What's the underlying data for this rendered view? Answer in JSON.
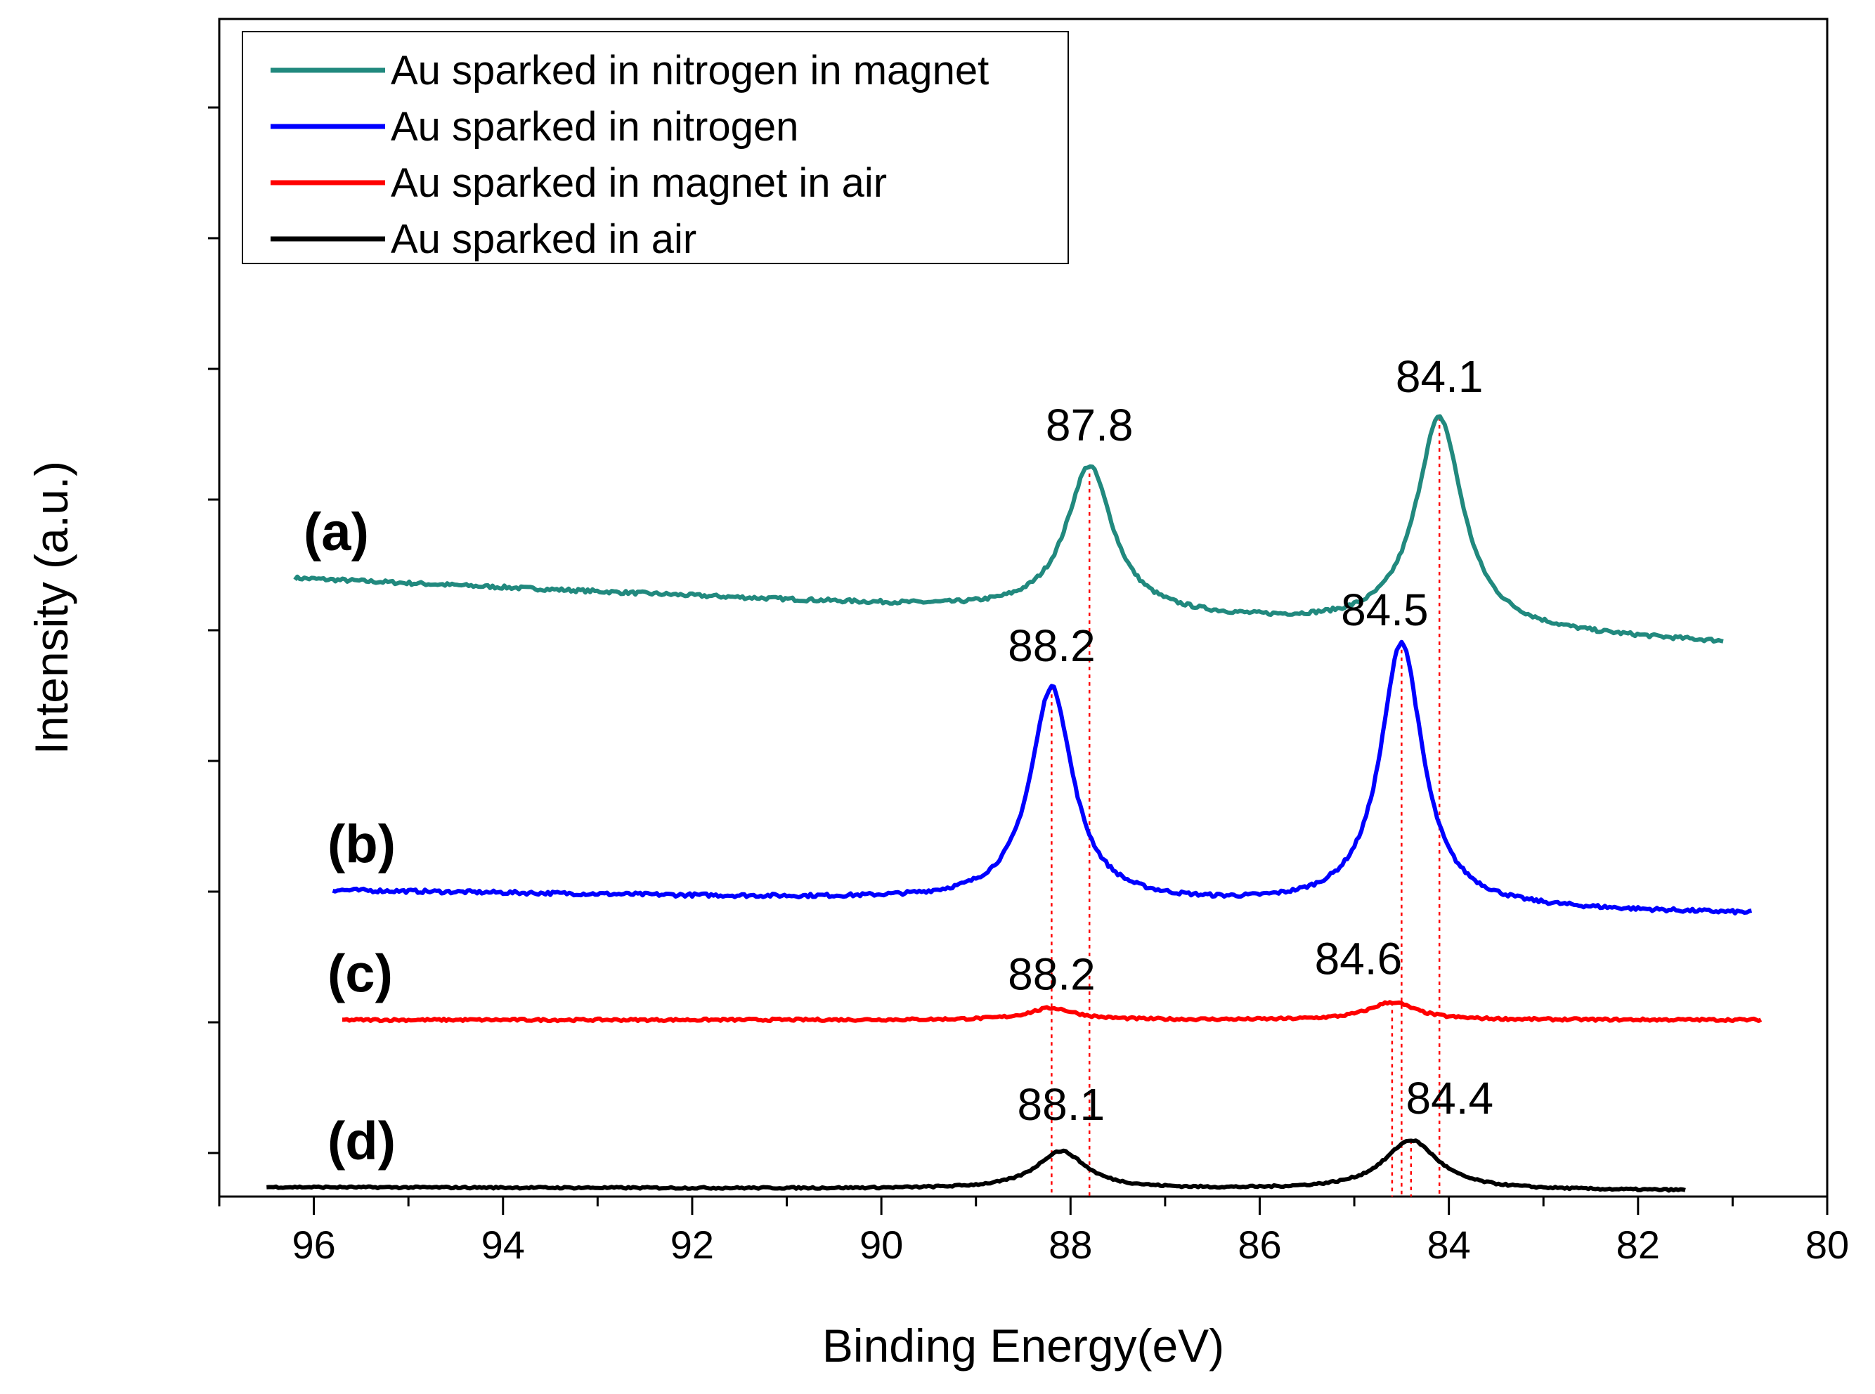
{
  "chart_data": {
    "type": "line",
    "title": "",
    "xlabel": "Binding Energy(eV)",
    "ylabel": "Intensity (a.u.)",
    "xlim": [
      97,
      80
    ],
    "x_reversed": true,
    "x_ticks": [
      96,
      94,
      92,
      90,
      88,
      86,
      84,
      82,
      80
    ],
    "y_tick_count": 9,
    "ylim": [
      0,
      10
    ],
    "grid": false,
    "legend_position": "top-left",
    "series": [
      {
        "name": "Au sparked in nitrogen in magnet",
        "label": "(a)",
        "color": "#21897E",
        "x_range": [
          96.2,
          81.1
        ],
        "baseline_start": 5.25,
        "baseline_end": 4.7,
        "noise": 0.03,
        "peaks": [
          {
            "center": 87.8,
            "height": 1.25,
            "width": 0.3
          },
          {
            "center": 84.1,
            "height": 1.8,
            "width": 0.3
          }
        ]
      },
      {
        "name": "Au sparked in nitrogen",
        "label": "(b)",
        "color": "#0000FF",
        "x_range": [
          95.8,
          80.8
        ],
        "baseline_start": 2.6,
        "baseline_end": 2.4,
        "noise": 0.03,
        "peaks": [
          {
            "center": 88.2,
            "height": 1.82,
            "width": 0.27
          },
          {
            "center": 84.5,
            "height": 2.25,
            "width": 0.27
          }
        ]
      },
      {
        "name": "Au sparked in magnet in air",
        "label": "(c)",
        "color": "#FF0000",
        "x_range": [
          95.7,
          80.7
        ],
        "baseline_start": 1.5,
        "baseline_end": 1.5,
        "noise": 0.02,
        "peaks": [
          {
            "center": 88.2,
            "height": 0.1,
            "width": 0.3
          },
          {
            "center": 84.6,
            "height": 0.15,
            "width": 0.3
          }
        ]
      },
      {
        "name": "Au sparked in air",
        "label": "(d)",
        "color": "#000000",
        "x_range": [
          96.5,
          81.5
        ],
        "baseline_start": 0.08,
        "baseline_end": 0.05,
        "noise": 0.015,
        "peaks": [
          {
            "center": 88.1,
            "height": 0.32,
            "width": 0.32
          },
          {
            "center": 84.4,
            "height": 0.42,
            "width": 0.35
          }
        ]
      }
    ],
    "peak_labels": [
      {
        "text": "87.8",
        "x": 87.8,
        "series": 0
      },
      {
        "text": "84.1",
        "x": 84.1,
        "series": 0
      },
      {
        "text": "88.2",
        "x": 88.2,
        "series": 1
      },
      {
        "text": "84.5",
        "x": 84.5,
        "series": 1
      },
      {
        "text": "88.2",
        "x": 88.2,
        "series": 2
      },
      {
        "text": "84.6",
        "x": 84.6,
        "series": 2
      },
      {
        "text": "88.1",
        "x": 88.1,
        "series": 3
      },
      {
        "text": "84.4",
        "x": 84.4,
        "series": 3
      }
    ],
    "reference_lines": {
      "color": "#FF0000",
      "style": "dotted",
      "x": [
        88.2,
        87.8,
        84.6,
        84.5,
        84.4,
        84.1
      ]
    }
  }
}
